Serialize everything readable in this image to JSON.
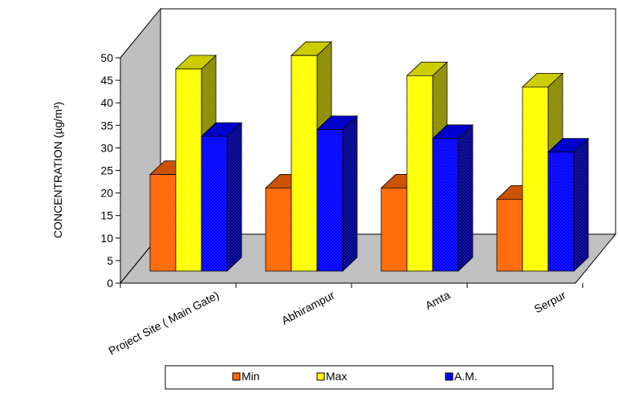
{
  "chart_data": {
    "type": "bar",
    "title": "",
    "xlabel": "",
    "ylabel": "CONCENTRATION (µg/m³)",
    "ylim": [
      0,
      50
    ],
    "yticks": [
      0,
      5,
      10,
      15,
      20,
      25,
      30,
      35,
      40,
      45,
      50
    ],
    "categories": [
      "Project Site ( Main Gate)",
      "Abhirampur",
      "Amta",
      "Serpur"
    ],
    "series": [
      {
        "name": "Min",
        "values": [
          21.5,
          18.5,
          18.5,
          16.0
        ],
        "color": "#ff6600"
      },
      {
        "name": "Max",
        "values": [
          45.0,
          48.0,
          43.5,
          41.0
        ],
        "color": "#ffff00"
      },
      {
        "name": "A.M.",
        "values": [
          30.0,
          31.5,
          29.5,
          26.5
        ],
        "color": "#0000ff"
      }
    ],
    "grid": false,
    "legend_position": "bottom",
    "view": "3d"
  }
}
